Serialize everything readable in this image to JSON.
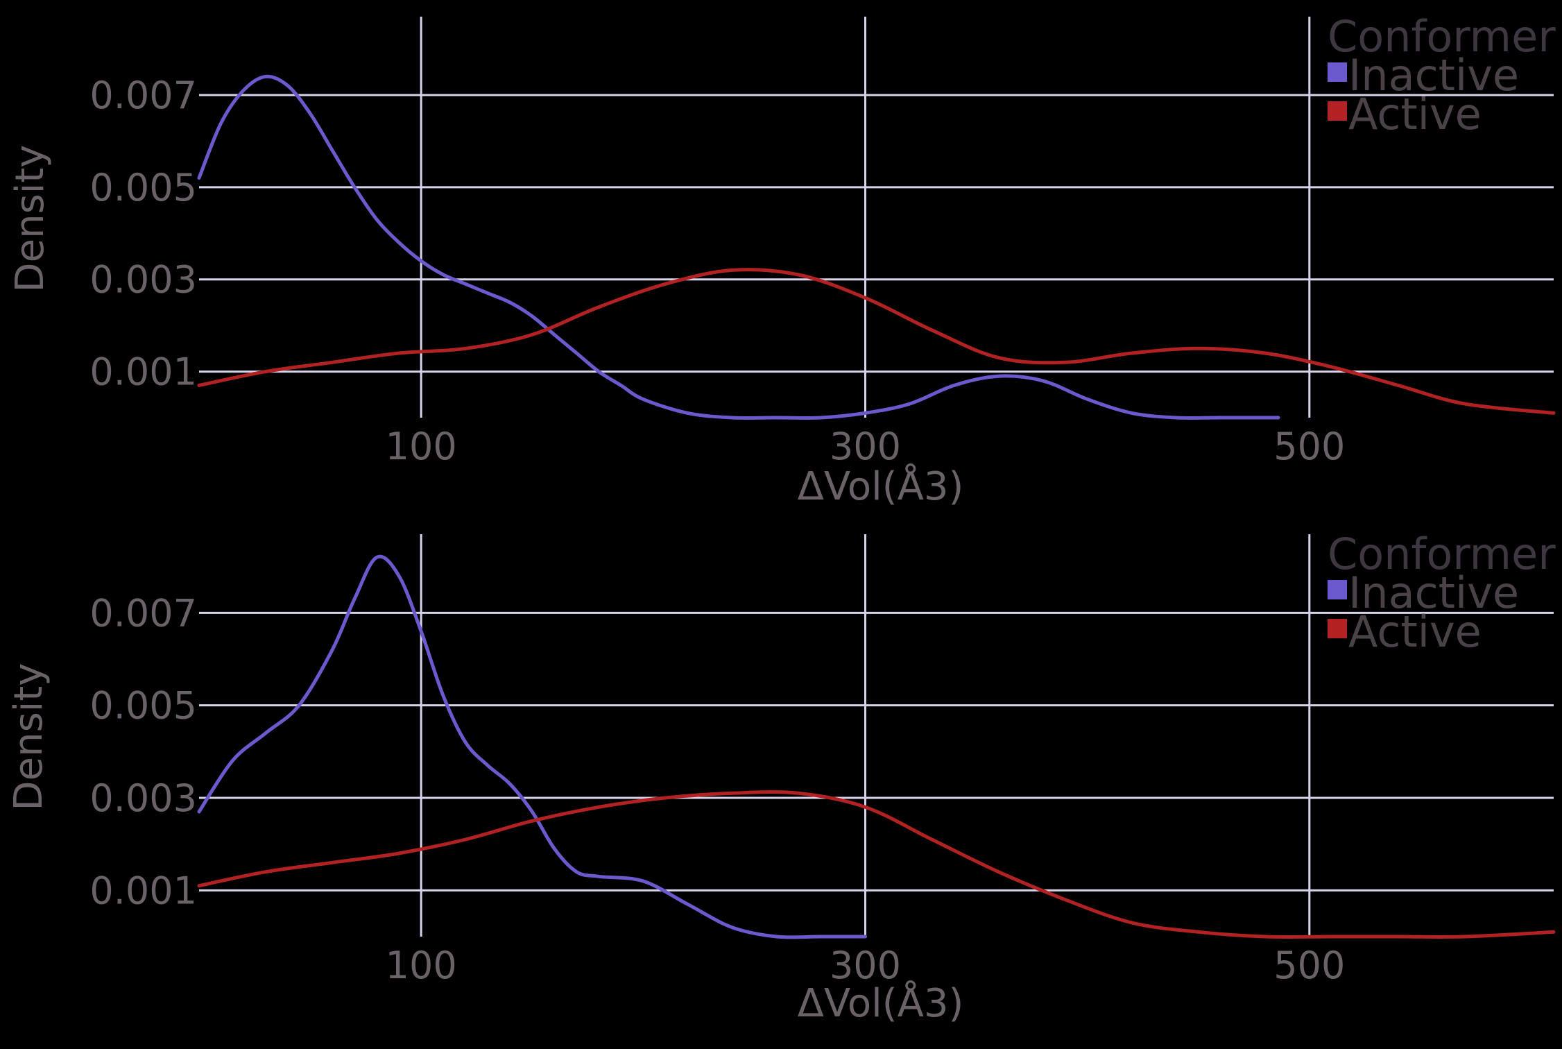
{
  "chart_data": [
    {
      "type": "line",
      "title": "",
      "xlabel": "ΔVol(Å3)",
      "ylabel": "Density",
      "xlim": [
        0,
        610
      ],
      "ylim": [
        0,
        0.0087
      ],
      "xticks": [
        "100",
        "300",
        "500"
      ],
      "xtick_values": [
        100,
        300,
        500
      ],
      "yticks": [
        "0.001",
        "0.003",
        "0.005",
        "0.007"
      ],
      "ytick_values": [
        0.001,
        0.003,
        0.005,
        0.007
      ],
      "grid": true,
      "legend": {
        "title": "Conformer",
        "placement": "top-right"
      },
      "series": [
        {
          "name": "Inactive",
          "color": "#6a5acd",
          "x": [
            0,
            10,
            20,
            30,
            40,
            50,
            60,
            70,
            80,
            90,
            100,
            110,
            120,
            130,
            140,
            150,
            160,
            170,
            180,
            190,
            200,
            220,
            240,
            260,
            280,
            300,
            320,
            340,
            360,
            380,
            400,
            420,
            440,
            460,
            486
          ],
          "y": [
            0.0052,
            0.0064,
            0.0071,
            0.0074,
            0.0072,
            0.0066,
            0.0058,
            0.005,
            0.0043,
            0.0038,
            0.0034,
            0.0031,
            0.0029,
            0.0027,
            0.0025,
            0.0022,
            0.0018,
            0.0014,
            0.001,
            0.0007,
            0.0004,
            0.0001,
            0.0,
            0.0,
            0.0,
            0.0001,
            0.0003,
            0.0007,
            0.0009,
            0.0008,
            0.0004,
            0.0001,
            0.0,
            0.0,
            0.0
          ]
        },
        {
          "name": "Active",
          "color": "#b22222",
          "x": [
            0,
            30,
            60,
            90,
            120,
            150,
            180,
            210,
            240,
            270,
            300,
            330,
            360,
            390,
            420,
            450,
            480,
            510,
            540,
            570,
            610
          ],
          "y": [
            0.0007,
            0.001,
            0.0012,
            0.0014,
            0.0015,
            0.0018,
            0.0024,
            0.0029,
            0.0032,
            0.0031,
            0.0026,
            0.0019,
            0.0013,
            0.0012,
            0.0014,
            0.0015,
            0.0014,
            0.0011,
            0.0007,
            0.0003,
            0.0001
          ]
        }
      ]
    },
    {
      "type": "line",
      "title": "",
      "xlabel": "ΔVol(Å3)",
      "ylabel": "Density",
      "xlim": [
        0,
        610
      ],
      "ylim": [
        0,
        0.0087
      ],
      "xticks": [
        "100",
        "300",
        "500"
      ],
      "xtick_values": [
        100,
        300,
        500
      ],
      "yticks": [
        "0.001",
        "0.003",
        "0.005",
        "0.007"
      ],
      "ytick_values": [
        0.001,
        0.003,
        0.005,
        0.007
      ],
      "grid": true,
      "legend": {
        "title": "Conformer",
        "placement": "top-right"
      },
      "series": [
        {
          "name": "Inactive",
          "color": "#6a5acd",
          "x": [
            0,
            15,
            30,
            45,
            60,
            70,
            80,
            90,
            100,
            110,
            120,
            130,
            140,
            150,
            160,
            170,
            180,
            200,
            220,
            240,
            260,
            280,
            300
          ],
          "y": [
            0.0027,
            0.0038,
            0.0044,
            0.005,
            0.0062,
            0.0073,
            0.0082,
            0.0078,
            0.0066,
            0.0052,
            0.0042,
            0.0037,
            0.0033,
            0.0027,
            0.0019,
            0.0014,
            0.0013,
            0.0012,
            0.0007,
            0.0002,
            0.0,
            0.0,
            0.0
          ]
        },
        {
          "name": "Active",
          "color": "#b22222",
          "x": [
            0,
            30,
            60,
            90,
            120,
            150,
            180,
            210,
            240,
            270,
            300,
            330,
            360,
            390,
            420,
            450,
            480,
            510,
            540,
            570,
            610
          ],
          "y": [
            0.0011,
            0.0014,
            0.0016,
            0.0018,
            0.0021,
            0.0025,
            0.0028,
            0.003,
            0.0031,
            0.0031,
            0.0028,
            0.0021,
            0.0014,
            0.0008,
            0.0003,
            0.0001,
            0.0,
            0.0,
            0.0,
            0.0,
            0.0001
          ]
        }
      ]
    }
  ]
}
